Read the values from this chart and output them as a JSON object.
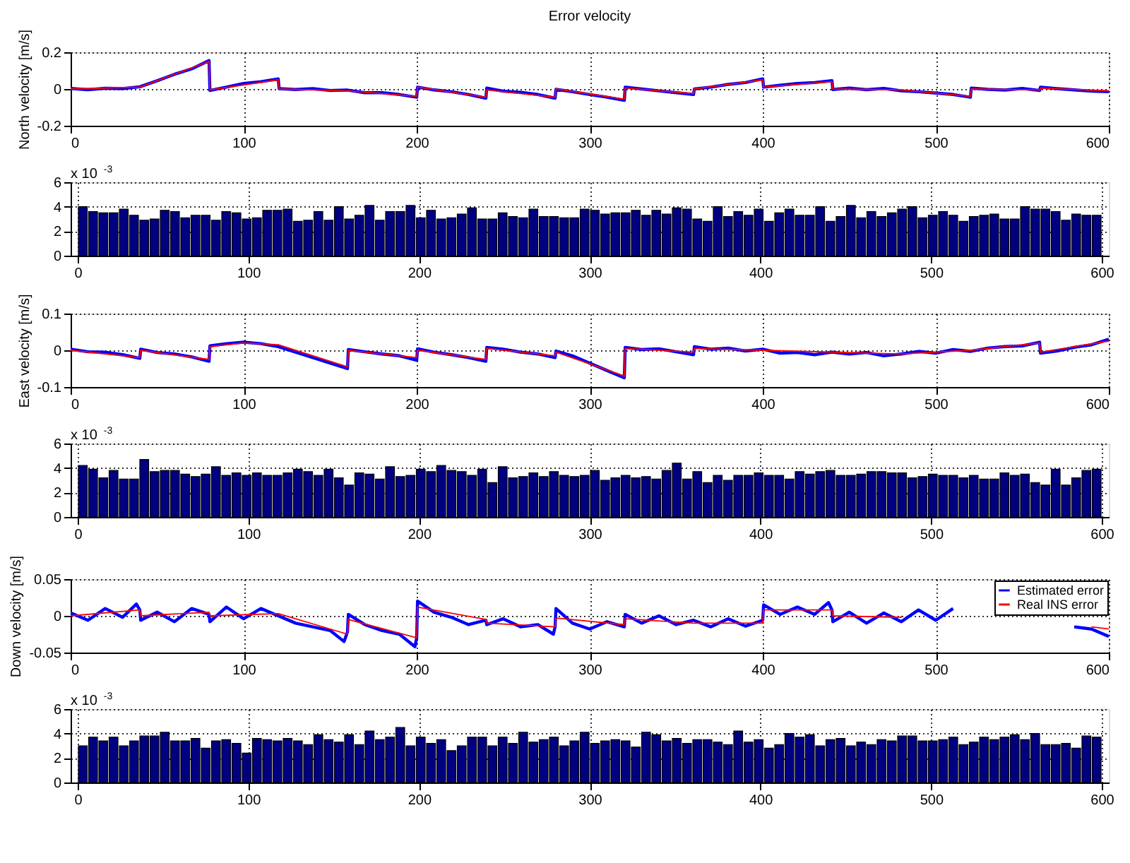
{
  "chart_data": [
    {
      "type": "line",
      "title": "Error velocity",
      "ylabel": "North velocity [m/s]",
      "xlim": [
        0,
        600
      ],
      "xticks": [
        0,
        100,
        200,
        300,
        400,
        500,
        600
      ],
      "ylim": [
        -0.2,
        0.2
      ],
      "yticks": [
        {
          "value": -0.2,
          "label": "-0.2"
        },
        {
          "value": 0,
          "label": "0"
        },
        {
          "value": 0.2,
          "label": "0.2"
        }
      ],
      "grid": true,
      "series": [
        {
          "color": "#0000ff",
          "x": [
            0,
            10,
            20,
            30,
            40,
            50,
            60,
            70,
            80,
            80.5,
            90,
            100,
            110,
            120,
            120.5,
            130,
            140,
            150,
            160,
            170,
            180,
            190,
            200,
            200.5,
            210,
            220,
            230,
            240,
            240.5,
            250,
            260,
            270,
            280,
            280.5,
            290,
            300,
            310,
            320,
            320.5,
            330,
            340,
            350,
            360,
            360.5,
            370,
            380,
            390,
            400,
            400.5,
            410,
            420,
            430,
            440,
            440.5,
            450,
            460,
            470,
            480,
            490,
            500,
            510,
            520,
            520.5,
            530,
            540,
            550,
            560,
            560.5,
            570,
            580,
            590,
            600
          ],
          "values": [
            0.003,
            -0.004,
            0.004,
            0.002,
            0.012,
            0.045,
            0.08,
            0.11,
            0.155,
            -0.008,
            0.01,
            0.03,
            0.04,
            0.055,
            0.002,
            -0.003,
            0.002,
            -0.008,
            -0.006,
            -0.02,
            -0.02,
            -0.03,
            -0.045,
            0.01,
            -0.005,
            -0.015,
            -0.03,
            -0.05,
            0.005,
            -0.012,
            -0.018,
            -0.03,
            -0.05,
            -0.002,
            -0.015,
            -0.03,
            -0.045,
            -0.062,
            0.01,
            0,
            -0.01,
            -0.02,
            -0.03,
            0,
            0.01,
            0.025,
            0.035,
            0.055,
            0.01,
            0.02,
            0.03,
            0.035,
            0.045,
            -0.003,
            0.005,
            -0.004,
            0.003,
            -0.01,
            -0.015,
            -0.022,
            -0.03,
            -0.045,
            0.005,
            -0.002,
            -0.006,
            0.003,
            -0.008,
            0.01,
            0.002,
            -0.005,
            -0.012,
            -0.015
          ]
        },
        {
          "color": "#ff0000",
          "x": [
            0,
            40,
            80,
            80.5,
            120,
            120.5,
            160,
            200,
            200.5,
            240,
            240.5,
            280,
            280.5,
            320,
            320.5,
            360,
            360.5,
            400,
            400.5,
            440,
            440.5,
            480,
            520,
            520.5,
            560,
            560.5,
            600
          ],
          "values": [
            0,
            0.01,
            0.15,
            -0.005,
            0.05,
            0,
            -0.01,
            -0.04,
            0.01,
            -0.045,
            -0.005,
            -0.045,
            0,
            -0.055,
            0.005,
            -0.025,
            0,
            0.05,
            0.01,
            0.04,
            0,
            -0.005,
            -0.04,
            0,
            -0.005,
            0.005,
            -0.01
          ]
        }
      ]
    },
    {
      "type": "bar",
      "annotations": [
        "x 10$^{-3}$"
      ],
      "xlim": [
        0,
        600
      ],
      "xticks": [
        0,
        100,
        200,
        300,
        400,
        500,
        600
      ],
      "ylim": [
        0,
        6
      ],
      "yticks": [
        0,
        2,
        4,
        6
      ],
      "grid": true,
      "color": "#000080",
      "x": [
        3,
        9,
        15,
        21,
        27,
        33,
        39,
        45,
        51,
        57,
        63,
        69,
        75,
        81,
        87,
        93,
        99,
        105,
        111,
        117,
        123,
        129,
        135,
        141,
        147,
        153,
        159,
        165,
        171,
        177,
        183,
        189,
        195,
        201,
        207,
        213,
        219,
        225,
        231,
        237,
        243,
        249,
        255,
        261,
        267,
        273,
        279,
        285,
        291,
        297,
        303,
        309,
        315,
        321,
        327,
        333,
        339,
        345,
        351,
        357,
        363,
        369,
        375,
        381,
        387,
        393,
        399,
        405,
        411,
        417,
        423,
        429,
        435,
        441,
        447,
        453,
        459,
        465,
        471,
        477,
        483,
        489,
        495,
        501,
        507,
        513,
        519,
        525,
        531,
        537,
        543,
        549,
        555,
        561,
        567,
        573,
        579,
        585,
        591,
        597
      ],
      "values": [
        4.0,
        3.6,
        3.5,
        3.5,
        3.8,
        3.3,
        2.9,
        3.0,
        3.7,
        3.6,
        3.1,
        3.3,
        3.3,
        2.9,
        3.6,
        3.5,
        3.0,
        3.1,
        3.7,
        3.7,
        3.8,
        2.8,
        2.9,
        3.6,
        2.9,
        4.0,
        3.0,
        3.3,
        4.1,
        2.9,
        3.6,
        3.6,
        4.1,
        3.1,
        3.7,
        3.0,
        3.1,
        3.4,
        3.9,
        3.0,
        3.0,
        3.5,
        3.2,
        3.1,
        3.8,
        3.2,
        3.2,
        3.1,
        3.1,
        3.8,
        3.7,
        3.4,
        3.5,
        3.5,
        3.7,
        3.3,
        3.7,
        3.4,
        3.9,
        3.8,
        3.0,
        2.8,
        4.0,
        3.2,
        3.6,
        3.3,
        3.8,
        2.8,
        3.5,
        3.8,
        3.3,
        3.3,
        4.0,
        2.8,
        3.2,
        4.1,
        3.1,
        3.6,
        3.2,
        3.5,
        3.8,
        4.0,
        3.1,
        3.3,
        3.6,
        3.3,
        2.8,
        3.2,
        3.3,
        3.4,
        3.0,
        3.0,
        4.0,
        3.8,
        3.8,
        3.6,
        2.9,
        3.4,
        3.3,
        3.3
      ]
    },
    {
      "type": "line",
      "ylabel": "East velocity [m/s]",
      "xlim": [
        0,
        600
      ],
      "xticks": [
        0,
        100,
        200,
        300,
        400,
        500,
        600
      ],
      "ylim": [
        -0.1,
        0.1
      ],
      "yticks": [
        {
          "value": -0.1,
          "label": "-0.1"
        },
        {
          "value": 0,
          "label": "0"
        },
        {
          "value": 0.1,
          "label": "0.1"
        }
      ],
      "grid": true,
      "series": [
        {
          "color": "#0000ff",
          "x": [
            0,
            10,
            20,
            30,
            40,
            40.5,
            50,
            60,
            70,
            80,
            80.5,
            90,
            100,
            110,
            120,
            130,
            140,
            150,
            160,
            160.5,
            170,
            180,
            190,
            200,
            200.5,
            210,
            220,
            230,
            240,
            240.5,
            250,
            260,
            270,
            280,
            280.5,
            290,
            300,
            310,
            320,
            320.5,
            330,
            340,
            350,
            360,
            360.5,
            370,
            380,
            390,
            400,
            410,
            420,
            430,
            440,
            450,
            460,
            470,
            480,
            490,
            500,
            510,
            520,
            530,
            540,
            550,
            560,
            560.5,
            570,
            580,
            590,
            600
          ],
          "values": [
            0.003,
            -0.004,
            -0.005,
            -0.012,
            -0.022,
            0.003,
            -0.006,
            -0.01,
            -0.018,
            -0.03,
            0.012,
            0.018,
            0.022,
            0.018,
            0.01,
            -0.005,
            -0.02,
            -0.035,
            -0.05,
            0.002,
            -0.004,
            -0.01,
            -0.015,
            -0.027,
            0.004,
            -0.005,
            -0.012,
            -0.02,
            -0.03,
            0.008,
            0.003,
            -0.005,
            -0.01,
            -0.02,
            -0.002,
            -0.015,
            -0.035,
            -0.055,
            -0.075,
            0.008,
            0.002,
            0.004,
            -0.004,
            -0.012,
            0.01,
            0.003,
            0.006,
            -0.002,
            0.003,
            -0.008,
            -0.006,
            -0.012,
            -0.005,
            -0.01,
            -0.006,
            -0.015,
            -0.01,
            -0.003,
            -0.008,
            0.002,
            -0.003,
            0.006,
            0.01,
            0.012,
            0.022,
            -0.008,
            -0.002,
            0.008,
            0.015,
            0.03
          ]
        },
        {
          "color": "#ff0000",
          "x": [
            0,
            40,
            40.5,
            80,
            80.5,
            100,
            120,
            160,
            160.5,
            200,
            200.5,
            240,
            240.5,
            280,
            280.5,
            320,
            320.5,
            360,
            360.5,
            400,
            480,
            520,
            560,
            560.5,
            600
          ],
          "values": [
            0,
            -0.02,
            0,
            -0.025,
            0.01,
            0.02,
            0.015,
            -0.045,
            0,
            -0.02,
            0,
            -0.025,
            0.005,
            -0.015,
            -0.005,
            -0.07,
            0.005,
            -0.005,
            0.005,
            0,
            -0.01,
            0,
            0.02,
            -0.005,
            0.025
          ]
        }
      ]
    },
    {
      "type": "bar",
      "annotations": [
        "x 10$^{-3}$"
      ],
      "xlim": [
        0,
        600
      ],
      "xticks": [
        0,
        100,
        200,
        300,
        400,
        500,
        600
      ],
      "ylim": [
        0,
        6
      ],
      "yticks": [
        0,
        2,
        4,
        6
      ],
      "grid": true,
      "color": "#000080",
      "x": [
        3,
        9,
        15,
        21,
        27,
        33,
        39,
        45,
        51,
        57,
        63,
        69,
        75,
        81,
        87,
        93,
        99,
        105,
        111,
        117,
        123,
        129,
        135,
        141,
        147,
        153,
        159,
        165,
        171,
        177,
        183,
        189,
        195,
        201,
        207,
        213,
        219,
        225,
        231,
        237,
        243,
        249,
        255,
        261,
        267,
        273,
        279,
        285,
        291,
        297,
        303,
        309,
        315,
        321,
        327,
        333,
        339,
        345,
        351,
        357,
        363,
        369,
        375,
        381,
        387,
        393,
        399,
        405,
        411,
        417,
        423,
        429,
        435,
        441,
        447,
        453,
        459,
        465,
        471,
        477,
        483,
        489,
        495,
        501,
        507,
        513,
        519,
        525,
        531,
        537,
        543,
        549,
        555,
        561,
        567,
        573,
        579,
        585,
        591,
        597
      ],
      "values": [
        4.2,
        3.9,
        3.2,
        3.8,
        3.1,
        3.1,
        4.7,
        3.7,
        3.8,
        3.8,
        3.5,
        3.3,
        3.5,
        4.1,
        3.4,
        3.6,
        3.4,
        3.6,
        3.4,
        3.4,
        3.6,
        3.9,
        3.7,
        3.4,
        3.9,
        3.2,
        2.6,
        3.6,
        3.5,
        3.1,
        4.1,
        3.3,
        3.4,
        3.9,
        3.7,
        4.2,
        3.8,
        3.7,
        3.4,
        3.9,
        2.8,
        4.1,
        3.2,
        3.3,
        3.6,
        3.3,
        3.7,
        3.4,
        3.3,
        3.4,
        3.8,
        3.0,
        3.2,
        3.4,
        3.2,
        3.3,
        3.1,
        3.8,
        4.4,
        3.1,
        3.7,
        2.8,
        3.4,
        3.0,
        3.4,
        3.4,
        3.6,
        3.4,
        3.4,
        3.1,
        3.7,
        3.5,
        3.7,
        3.8,
        3.4,
        3.4,
        3.5,
        3.7,
        3.7,
        3.6,
        3.6,
        3.2,
        3.3,
        3.5,
        3.4,
        3.4,
        3.2,
        3.4,
        3.1,
        3.1,
        3.6,
        3.4,
        3.5,
        2.8,
        2.6,
        3.9,
        2.6,
        3.2,
        3.8,
        3.9
      ]
    },
    {
      "type": "line",
      "ylabel": "Down velocity [m/s]",
      "xlim": [
        0,
        600
      ],
      "xticks": [
        0,
        100,
        200,
        300,
        400,
        500,
        600
      ],
      "ylim": [
        -0.05,
        0.05
      ],
      "yticks": [
        {
          "value": -0.05,
          "label": "-0.05"
        },
        {
          "value": 0,
          "label": "0"
        },
        {
          "value": 0.05,
          "label": "0.05"
        }
      ],
      "grid": true,
      "legend": "top right",
      "series": [
        {
          "name": "Estimated error",
          "color": "#0000ff",
          "x": [
            0,
            10,
            20,
            30,
            38,
            40,
            40.5,
            50,
            60,
            70,
            80,
            80.5,
            90,
            100,
            110,
            120,
            130,
            140,
            150,
            158,
            160,
            160.5,
            170,
            180,
            190,
            199,
            200,
            200.5,
            210,
            220,
            230,
            240,
            240.5,
            250,
            260,
            270,
            279,
            280,
            280.5,
            290,
            300,
            310,
            320,
            320.5,
            330,
            340,
            350,
            360,
            370,
            380,
            390,
            400,
            400.5,
            410,
            420,
            430,
            438,
            440,
            440.5,
            450,
            460,
            470,
            480,
            490,
            500,
            510,
            520,
            530,
            540,
            550,
            560,
            570,
            580,
            590,
            600
          ],
          "values": [
            0.004,
            -0.006,
            0.01,
            -0.002,
            0.016,
            0.008,
            -0.006,
            0.005,
            -0.008,
            0.01,
            0.002,
            -0.008,
            0.012,
            -0.004,
            0.01,
            0,
            -0.01,
            -0.015,
            -0.02,
            -0.035,
            -0.022,
            0.002,
            -0.012,
            -0.02,
            -0.025,
            -0.042,
            -0.03,
            0.02,
            0.005,
            -0.002,
            -0.012,
            -0.006,
            -0.012,
            -0.004,
            -0.015,
            -0.012,
            -0.025,
            -0.015,
            0.01,
            -0.01,
            -0.018,
            -0.008,
            -0.015,
            0.002,
            -0.01,
            0,
            -0.012,
            -0.006,
            -0.015,
            -0.004,
            -0.014,
            -0.006,
            0.015,
            0.002,
            0.012,
            0.002,
            0.018,
            0.008,
            -0.008,
            0.005,
            -0.01,
            0.004,
            -0.008,
            0.008,
            -0.006,
            0.01,
            null,
            null,
            null,
            null,
            null,
            null,
            -0.015,
            -0.018,
            -0.028
          ]
        },
        {
          "name": "Real INS error",
          "color": "#ff0000",
          "x": [
            0,
            40,
            40.5,
            80,
            80.5,
            120,
            160,
            160.5,
            200,
            200.5,
            240,
            240.5,
            280,
            280.5,
            320,
            320.5,
            360,
            400,
            400.5,
            440,
            440.5,
            480,
            480.5,
            520,
            560,
            590,
            600
          ],
          "values": [
            0,
            0.008,
            0,
            0.005,
            0,
            0.003,
            -0.025,
            -0.005,
            -0.03,
            0.012,
            -0.005,
            -0.01,
            -0.015,
            -0.003,
            -0.012,
            -0.004,
            -0.01,
            -0.01,
            0.008,
            0.008,
            0,
            -0.002,
            0,
            null,
            null,
            -0.015,
            -0.018
          ]
        }
      ]
    },
    {
      "type": "bar",
      "annotations": [
        "x 10$^{-3}$"
      ],
      "xlim": [
        0,
        600
      ],
      "xticks": [
        0,
        100,
        200,
        300,
        400,
        500,
        600
      ],
      "ylim": [
        0,
        6
      ],
      "yticks": [
        0,
        2,
        4,
        6
      ],
      "grid": true,
      "color": "#000080",
      "x": [
        3,
        9,
        15,
        21,
        27,
        33,
        39,
        45,
        51,
        57,
        63,
        69,
        75,
        81,
        87,
        93,
        99,
        105,
        111,
        117,
        123,
        129,
        135,
        141,
        147,
        153,
        159,
        165,
        171,
        177,
        183,
        189,
        195,
        201,
        207,
        213,
        219,
        225,
        231,
        237,
        243,
        249,
        255,
        261,
        267,
        273,
        279,
        285,
        291,
        297,
        303,
        309,
        315,
        321,
        327,
        333,
        339,
        345,
        351,
        357,
        363,
        369,
        375,
        381,
        387,
        393,
        399,
        405,
        411,
        417,
        423,
        429,
        435,
        441,
        447,
        453,
        459,
        465,
        471,
        477,
        483,
        489,
        495,
        501,
        507,
        513,
        519,
        525,
        531,
        537,
        543,
        549,
        555,
        561,
        567,
        573,
        579,
        585,
        591,
        597
      ],
      "values": [
        3.0,
        3.7,
        3.4,
        3.7,
        3.0,
        3.4,
        3.8,
        3.8,
        4.1,
        3.4,
        3.4,
        3.6,
        2.8,
        3.4,
        3.5,
        3.2,
        2.4,
        3.6,
        3.5,
        3.4,
        3.6,
        3.4,
        3.1,
        3.9,
        3.5,
        3.3,
        3.9,
        3.1,
        4.2,
        3.5,
        3.7,
        4.5,
        3.0,
        3.7,
        3.2,
        3.5,
        2.6,
        3.0,
        3.7,
        3.7,
        3.0,
        3.7,
        3.2,
        4.1,
        3.3,
        3.5,
        3.7,
        3.0,
        3.4,
        4.1,
        3.2,
        3.4,
        3.5,
        3.4,
        2.9,
        4.1,
        3.9,
        3.4,
        3.6,
        3.2,
        3.5,
        3.5,
        3.3,
        3.1,
        4.2,
        3.3,
        3.5,
        2.8,
        3.1,
        4.0,
        3.7,
        3.9,
        3.0,
        3.5,
        3.6,
        3.0,
        3.3,
        3.1,
        3.5,
        3.4,
        3.8,
        3.8,
        3.4,
        3.4,
        3.5,
        3.7,
        3.1,
        3.3,
        3.7,
        3.5,
        3.7,
        3.9,
        3.5,
        4.0,
        3.1,
        3.1,
        3.2,
        2.8,
        3.8,
        3.7
      ]
    }
  ]
}
